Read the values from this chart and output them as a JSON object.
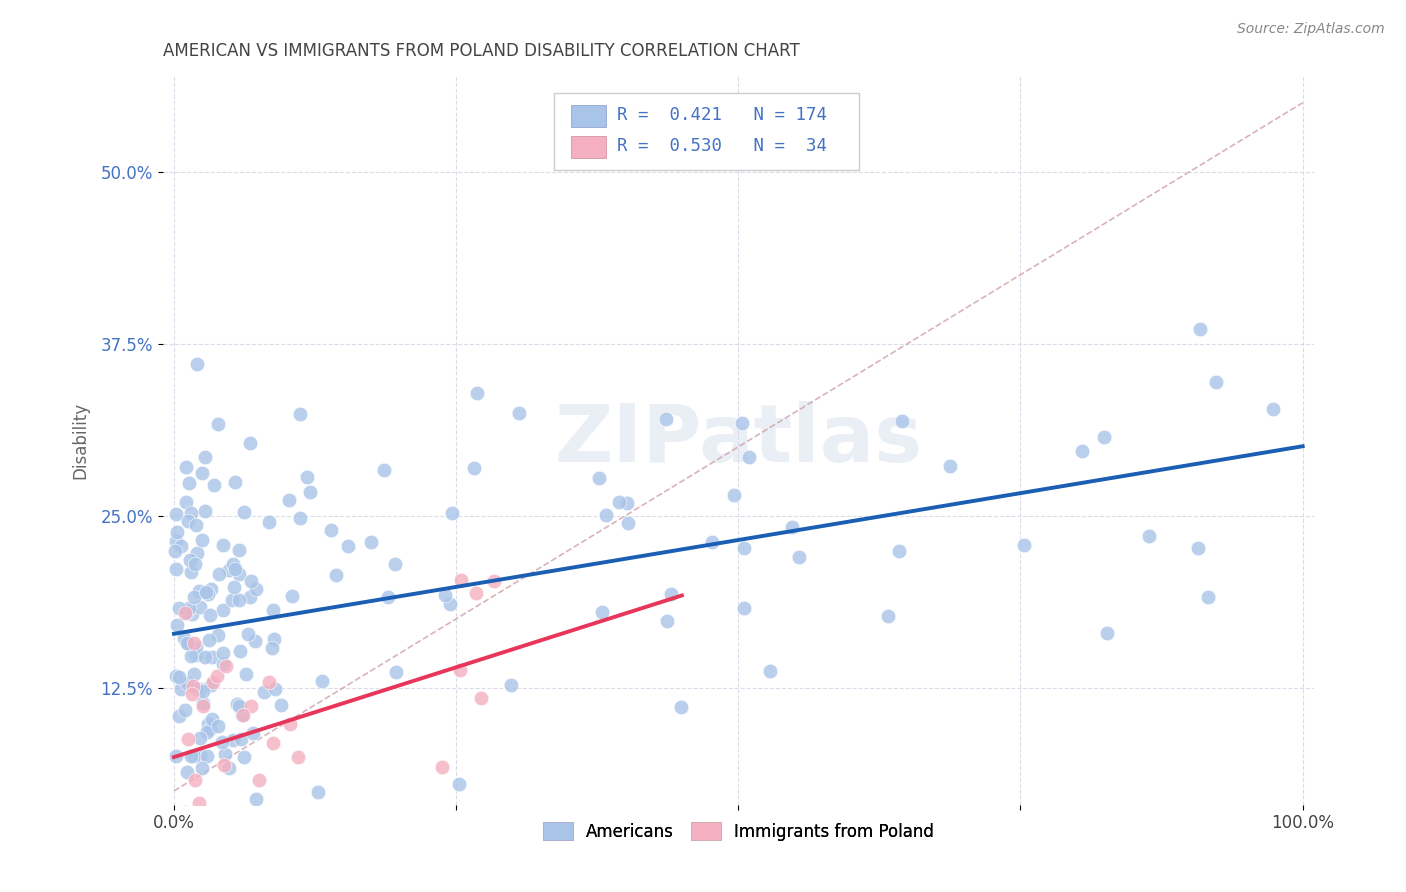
{
  "title": "AMERICAN VS IMMIGRANTS FROM POLAND DISABILITY CORRELATION CHART",
  "source": "Source: ZipAtlas.com",
  "ylabel": "Disability",
  "americans_R": 0.421,
  "americans_N": 174,
  "poland_R": 0.53,
  "poland_N": 34,
  "americans_color": "#a8c4e8",
  "poland_color": "#f4afc0",
  "trend_americans_color": "#1a5fb4",
  "trend_poland_color": "#e8365a",
  "trend_diagonal_color": "#d0a0a8",
  "background_color": "#ffffff",
  "grid_color": "#d8d8e8",
  "watermark": "ZIPatlas",
  "title_color": "#444444",
  "source_color": "#888888",
  "ytick_color": "#4472c4",
  "xtick_color": "#444444",
  "ylabel_color": "#666666"
}
